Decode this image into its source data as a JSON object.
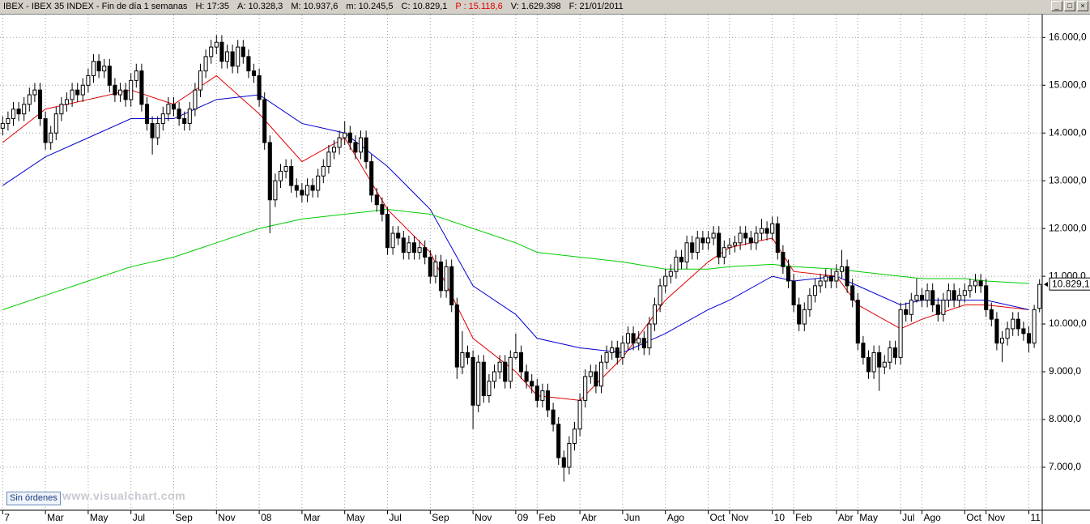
{
  "header": [
    "IBEX - IBEX 35 INDEX - Fin de día 1 semanas",
    "H: 17:35",
    "A: 10.328,3",
    "M: 10.937,6",
    "m: 10.245,5",
    "C: 10.829,1",
    "P : 15.118,6",
    "V: 1.629.398",
    "F: 21/01/2011"
  ],
  "button": "Sin órdenes",
  "watermark": "www.visualchart.com",
  "chart_data": {
    "type": "candlestick",
    "ylim": [
      6100,
      16480
    ],
    "yticks": [
      {
        "value": 7000,
        "label": "7.000,0"
      },
      {
        "value": 8000,
        "label": "8.000,0"
      },
      {
        "value": 9000,
        "label": "9.000,0"
      },
      {
        "value": 10000,
        "label": "10.000,0"
      },
      {
        "value": 11000,
        "label": "11.000,0"
      },
      {
        "value": 12000,
        "label": "12.000,0"
      },
      {
        "value": 13000,
        "label": "13.000,0"
      },
      {
        "value": 14000,
        "label": "14.000,0"
      },
      {
        "value": 15000,
        "label": "15.000,0"
      },
      {
        "value": 16000,
        "label": "16.000,0"
      }
    ],
    "xlim": [
      -0.5,
      194.5
    ],
    "xticks": [
      {
        "value": 0,
        "label": "7"
      },
      {
        "value": 8,
        "label": "Mar"
      },
      {
        "value": 16,
        "label": "May"
      },
      {
        "value": 24,
        "label": "Jul"
      },
      {
        "value": 32,
        "label": "Sep"
      },
      {
        "value": 40,
        "label": "Nov"
      },
      {
        "value": 48,
        "label": "08"
      },
      {
        "value": 56,
        "label": "Mar"
      },
      {
        "value": 64,
        "label": "May"
      },
      {
        "value": 72,
        "label": "Jul"
      },
      {
        "value": 80,
        "label": "Sep"
      },
      {
        "value": 88,
        "label": "Nov"
      },
      {
        "value": 96,
        "label": "09"
      },
      {
        "value": 100,
        "label": "Feb"
      },
      {
        "value": 108,
        "label": "Abr"
      },
      {
        "value": 116,
        "label": "Jun"
      },
      {
        "value": 124,
        "label": "Ago"
      },
      {
        "value": 132,
        "label": "Oct"
      },
      {
        "value": 136,
        "label": "Nov"
      },
      {
        "value": 144,
        "label": "10"
      },
      {
        "value": 148,
        "label": "Feb"
      },
      {
        "value": 156,
        "label": "Abr"
      },
      {
        "value": 160,
        "label": "May"
      },
      {
        "value": 168,
        "label": "Jul"
      },
      {
        "value": 172,
        "label": "Ago"
      },
      {
        "value": 180,
        "label": "Oct"
      },
      {
        "value": 184,
        "label": "Nov"
      },
      {
        "value": 192,
        "label": "11"
      }
    ],
    "grid": true,
    "up_color": "#ffffff",
    "down_color": "#000000",
    "last_label": {
      "value": 10829.1,
      "label": "10.829,1"
    },
    "candles": [
      [
        14100,
        14350,
        13950,
        14200
      ],
      [
        14200,
        14450,
        14050,
        14300
      ],
      [
        14300,
        14650,
        14150,
        14500
      ],
      [
        14500,
        14650,
        14250,
        14400
      ],
      [
        14400,
        14750,
        14250,
        14600
      ],
      [
        14600,
        14950,
        14450,
        14800
      ],
      [
        14800,
        15050,
        14650,
        14900
      ],
      [
        14900,
        15050,
        14150,
        14300
      ],
      [
        14300,
        14450,
        13650,
        13800
      ],
      [
        13800,
        14150,
        13650,
        14000
      ],
      [
        14000,
        14550,
        13850,
        14400
      ],
      [
        14400,
        14750,
        14250,
        14600
      ],
      [
        14600,
        14850,
        14450,
        14700
      ],
      [
        14700,
        15050,
        14550,
        14900
      ],
      [
        14900,
        15050,
        14650,
        14800
      ],
      [
        14800,
        15150,
        14650,
        15000
      ],
      [
        15000,
        15350,
        14850,
        15200
      ],
      [
        15200,
        15650,
        15050,
        15500
      ],
      [
        15500,
        15650,
        15150,
        15300
      ],
      [
        15300,
        15550,
        15150,
        15400
      ],
      [
        15400,
        15550,
        14850,
        15000
      ],
      [
        15000,
        15150,
        14650,
        14800
      ],
      [
        14800,
        15050,
        14650,
        14900
      ],
      [
        14900,
        15050,
        14550,
        14700
      ],
      [
        14700,
        15250,
        14550,
        15100
      ],
      [
        15100,
        15450,
        14950,
        15300
      ],
      [
        15300,
        15450,
        14450,
        14600
      ],
      [
        14600,
        14750,
        14050,
        14200
      ],
      [
        14200,
        14350,
        13550,
        13900
      ],
      [
        13900,
        14350,
        13750,
        14200
      ],
      [
        14200,
        14550,
        14050,
        14400
      ],
      [
        14400,
        14750,
        14250,
        14600
      ],
      [
        14600,
        14750,
        14350,
        14500
      ],
      [
        14500,
        14650,
        14150,
        14300
      ],
      [
        14300,
        14450,
        14050,
        14200
      ],
      [
        14200,
        14650,
        14050,
        14500
      ],
      [
        14500,
        15050,
        14350,
        14900
      ],
      [
        14900,
        15450,
        14750,
        15300
      ],
      [
        15300,
        15750,
        15150,
        15600
      ],
      [
        15600,
        15950,
        15450,
        15800
      ],
      [
        15800,
        16050,
        15650,
        15900
      ],
      [
        15900,
        16050,
        15350,
        15500
      ],
      [
        15500,
        15850,
        15350,
        15700
      ],
      [
        15700,
        15850,
        15250,
        15400
      ],
      [
        15400,
        15950,
        15250,
        15800
      ],
      [
        15800,
        15950,
        15450,
        15600
      ],
      [
        15600,
        15750,
        15150,
        15300
      ],
      [
        15300,
        15450,
        15050,
        15200
      ],
      [
        15200,
        15350,
        14550,
        14700
      ],
      [
        14700,
        14850,
        13650,
        13800
      ],
      [
        13800,
        13950,
        11900,
        12600
      ],
      [
        12600,
        13150,
        12450,
        13000
      ],
      [
        13000,
        13350,
        12850,
        13200
      ],
      [
        13200,
        13450,
        13050,
        13300
      ],
      [
        13300,
        13450,
        12750,
        12900
      ],
      [
        12900,
        13050,
        12650,
        12800
      ],
      [
        12800,
        12950,
        12550,
        12700
      ],
      [
        12700,
        13050,
        12550,
        12900
      ],
      [
        12900,
        13050,
        12650,
        12800
      ],
      [
        12800,
        13250,
        12650,
        13100
      ],
      [
        13100,
        13450,
        12950,
        13300
      ],
      [
        13300,
        13750,
        13150,
        13600
      ],
      [
        13600,
        13850,
        13450,
        13700
      ],
      [
        13700,
        14050,
        13550,
        13900
      ],
      [
        13900,
        14250,
        13750,
        14000
      ],
      [
        14000,
        14150,
        13650,
        13800
      ],
      [
        13800,
        13950,
        13450,
        13600
      ],
      [
        13600,
        14050,
        13450,
        13900
      ],
      [
        13900,
        14050,
        13250,
        13400
      ],
      [
        13400,
        13550,
        12550,
        12700
      ],
      [
        12700,
        12850,
        12350,
        12500
      ],
      [
        12500,
        12650,
        12150,
        12300
      ],
      [
        12300,
        12450,
        11450,
        11600
      ],
      [
        11600,
        12050,
        11450,
        11900
      ],
      [
        11900,
        12050,
        11650,
        11800
      ],
      [
        11800,
        11950,
        11350,
        11500
      ],
      [
        11500,
        11850,
        11350,
        11700
      ],
      [
        11700,
        11850,
        11350,
        11500
      ],
      [
        11500,
        11750,
        11350,
        11600
      ],
      [
        11600,
        11750,
        11250,
        11400
      ],
      [
        11400,
        11550,
        10850,
        11000
      ],
      [
        11000,
        11450,
        10850,
        11300
      ],
      [
        11300,
        11450,
        10550,
        10700
      ],
      [
        10700,
        11350,
        10550,
        11200
      ],
      [
        11200,
        11350,
        10250,
        10400
      ],
      [
        10400,
        10550,
        8850,
        9100
      ],
      [
        9100,
        9850,
        8950,
        9400
      ],
      [
        9400,
        9550,
        9150,
        9300
      ],
      [
        9300,
        9450,
        7800,
        8300
      ],
      [
        8300,
        9350,
        8150,
        9200
      ],
      [
        9200,
        9350,
        8350,
        8500
      ],
      [
        8500,
        8950,
        8350,
        8800
      ],
      [
        8800,
        9150,
        8650,
        9000
      ],
      [
        9000,
        9350,
        8850,
        9200
      ],
      [
        9200,
        9350,
        8650,
        8800
      ],
      [
        8800,
        9450,
        8650,
        9300
      ],
      [
        9300,
        9800,
        9250,
        9400
      ],
      [
        9400,
        9550,
        8850,
        9000
      ],
      [
        9000,
        9150,
        8650,
        8800
      ],
      [
        8800,
        8950,
        8550,
        8700
      ],
      [
        8700,
        8850,
        8250,
        8400
      ],
      [
        8400,
        8750,
        8250,
        8600
      ],
      [
        8600,
        8750,
        8050,
        8200
      ],
      [
        8200,
        8350,
        7750,
        7900
      ],
      [
        7900,
        8050,
        7050,
        7200
      ],
      [
        7200,
        7350,
        6700,
        7000
      ],
      [
        7000,
        7650,
        6850,
        7500
      ],
      [
        7500,
        7950,
        7350,
        7800
      ],
      [
        7800,
        8550,
        7650,
        8400
      ],
      [
        8400,
        9050,
        8250,
        8900
      ],
      [
        8900,
        9150,
        8750,
        9000
      ],
      [
        9000,
        9150,
        8550,
        8700
      ],
      [
        8700,
        9350,
        8550,
        9200
      ],
      [
        9200,
        9550,
        9050,
        9400
      ],
      [
        9400,
        9650,
        9250,
        9500
      ],
      [
        9500,
        9650,
        9150,
        9300
      ],
      [
        9300,
        9750,
        9150,
        9600
      ],
      [
        9600,
        9950,
        9450,
        9800
      ],
      [
        9800,
        9950,
        9450,
        9600
      ],
      [
        9600,
        9850,
        9450,
        9700
      ],
      [
        9700,
        9850,
        9350,
        9500
      ],
      [
        9500,
        10150,
        9350,
        10000
      ],
      [
        10000,
        10550,
        9850,
        10400
      ],
      [
        10400,
        10950,
        10250,
        10800
      ],
      [
        10800,
        11150,
        10650,
        11000
      ],
      [
        11000,
        11250,
        10850,
        11100
      ],
      [
        11100,
        11550,
        10950,
        11400
      ],
      [
        11400,
        11550,
        11150,
        11300
      ],
      [
        11300,
        11850,
        11150,
        11700
      ],
      [
        11700,
        11850,
        11350,
        11500
      ],
      [
        11500,
        11950,
        11350,
        11800
      ],
      [
        11800,
        11950,
        11550,
        11700
      ],
      [
        11700,
        11950,
        11550,
        11800
      ],
      [
        11800,
        12050,
        11650,
        11900
      ],
      [
        11900,
        12050,
        11250,
        11400
      ],
      [
        11400,
        11750,
        11250,
        11600
      ],
      [
        11600,
        11800,
        11450,
        11650
      ],
      [
        11650,
        11850,
        11500,
        11700
      ],
      [
        11700,
        12050,
        11550,
        11900
      ],
      [
        11900,
        12050,
        11650,
        11800
      ],
      [
        11800,
        11950,
        11550,
        11700
      ],
      [
        11700,
        12050,
        11550,
        11900
      ],
      [
        11900,
        12200,
        11750,
        12000
      ],
      [
        12000,
        12150,
        11750,
        11900
      ],
      [
        11900,
        12250,
        11750,
        12100
      ],
      [
        12100,
        12250,
        11350,
        11500
      ],
      [
        11500,
        11650,
        11050,
        11200
      ],
      [
        11200,
        11350,
        10750,
        10900
      ],
      [
        10900,
        11050,
        10250,
        10400
      ],
      [
        10400,
        10550,
        9850,
        10000
      ],
      [
        10000,
        10450,
        9850,
        10300
      ],
      [
        10300,
        10750,
        10150,
        10600
      ],
      [
        10600,
        10950,
        10450,
        10800
      ],
      [
        10800,
        11050,
        10650,
        10900
      ],
      [
        10900,
        11150,
        10750,
        11000
      ],
      [
        11000,
        11150,
        10750,
        10900
      ],
      [
        10900,
        11250,
        10750,
        11100
      ],
      [
        11100,
        11550,
        10950,
        11200
      ],
      [
        11200,
        11350,
        10650,
        10800
      ],
      [
        10800,
        10950,
        10350,
        10500
      ],
      [
        10500,
        10650,
        9450,
        9600
      ],
      [
        9600,
        9750,
        9150,
        9300
      ],
      [
        9300,
        9450,
        8850,
        9000
      ],
      [
        9000,
        9550,
        8850,
        9400
      ],
      [
        9400,
        9550,
        8600,
        9100
      ],
      [
        9100,
        9350,
        8950,
        9200
      ],
      [
        9200,
        9650,
        9050,
        9500
      ],
      [
        9500,
        9650,
        9150,
        9300
      ],
      [
        9300,
        10450,
        9150,
        10300
      ],
      [
        10300,
        10450,
        10050,
        10200
      ],
      [
        10200,
        10650,
        10050,
        10500
      ],
      [
        10500,
        10950,
        10450,
        10600
      ],
      [
        10600,
        10750,
        10350,
        10500
      ],
      [
        10500,
        10850,
        10350,
        10700
      ],
      [
        10700,
        10850,
        10250,
        10400
      ],
      [
        10400,
        10550,
        10050,
        10200
      ],
      [
        10200,
        10650,
        10050,
        10500
      ],
      [
        10500,
        10850,
        10350,
        10700
      ],
      [
        10700,
        10850,
        10350,
        10500
      ],
      [
        10500,
        10750,
        10350,
        10600
      ],
      [
        10600,
        10850,
        10450,
        10700
      ],
      [
        10700,
        10950,
        10550,
        10800
      ],
      [
        10800,
        11050,
        10650,
        10900
      ],
      [
        10900,
        11050,
        10650,
        10800
      ],
      [
        10800,
        10950,
        10150,
        10300
      ],
      [
        10300,
        10450,
        9950,
        10100
      ],
      [
        10100,
        10250,
        9450,
        9600
      ],
      [
        9600,
        9850,
        9200,
        9700
      ],
      [
        9700,
        10050,
        9550,
        9900
      ],
      [
        9900,
        10250,
        9750,
        10100
      ],
      [
        10100,
        10250,
        9750,
        9900
      ],
      [
        9900,
        10050,
        9650,
        9800
      ],
      [
        9800,
        9950,
        9400,
        9600
      ],
      [
        9600,
        10400,
        9500,
        10300
      ],
      [
        10328.3,
        10937.6,
        10245.5,
        10829.1
      ]
    ],
    "ma_x": [
      0,
      8,
      16,
      24,
      32,
      40,
      48,
      56,
      64,
      72,
      80,
      88,
      96,
      100,
      108,
      116,
      124,
      132,
      136,
      144,
      148,
      156,
      160,
      168,
      172,
      180,
      184,
      192
    ],
    "moving_averages": [
      {
        "color": "#e00000",
        "values": [
          13800,
          14500,
          14700,
          14900,
          14600,
          15200,
          14400,
          13400,
          13900,
          12400,
          11500,
          9700,
          9000,
          8500,
          8400,
          9300,
          10500,
          11300,
          11600,
          11800,
          11100,
          11000,
          10400,
          9900,
          10100,
          10400,
          10400,
          10300
        ]
      },
      {
        "color": "#0000d0",
        "values": [
          12900,
          13500,
          13900,
          14300,
          14300,
          14700,
          14800,
          14200,
          14000,
          13300,
          12400,
          10800,
          10200,
          9700,
          9500,
          9400,
          9800,
          10300,
          10500,
          11000,
          10900,
          11000,
          10800,
          10400,
          10500,
          10500,
          10500,
          10300
        ]
      },
      {
        "color": "#00cc00",
        "values": [
          10300,
          10600,
          10900,
          11200,
          11400,
          11700,
          12000,
          12200,
          12300,
          12400,
          12300,
          12000,
          11700,
          11500,
          11400,
          11300,
          11150,
          11150,
          11200,
          11250,
          11200,
          11150,
          11100,
          11000,
          10950,
          10950,
          10900,
          10850
        ]
      }
    ]
  }
}
